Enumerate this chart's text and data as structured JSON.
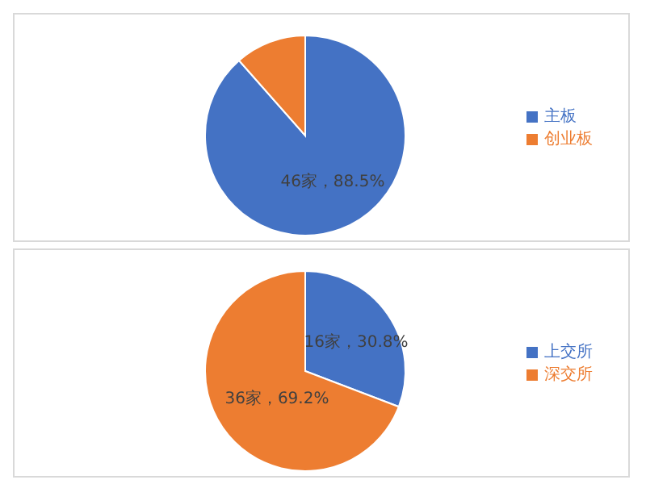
{
  "chart_data": [
    {
      "type": "pie",
      "categories": [
        "主板",
        "创业板"
      ],
      "values": [
        88.5,
        11.5
      ],
      "colors": [
        "#4472c4",
        "#ed7d31"
      ],
      "value_labels": [
        "46家，88.5%",
        null
      ],
      "legend": "right"
    },
    {
      "type": "pie",
      "categories": [
        "上交所",
        "深交所"
      ],
      "values": [
        30.8,
        69.2
      ],
      "colors": [
        "#4472c4",
        "#ed7d31"
      ],
      "value_labels": [
        "16家，30.8%",
        "36家，69.2%"
      ],
      "legend": "right"
    }
  ]
}
